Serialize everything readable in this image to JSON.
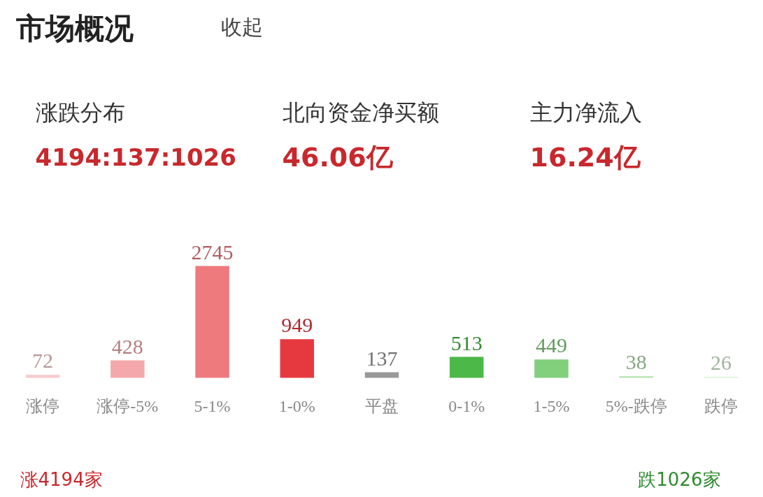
{
  "chart_data": {
    "type": "bar",
    "title": "市场概况",
    "categories": [
      "涨停",
      "涨停-5%",
      "5-1%",
      "1-0%",
      "平盘",
      "0-1%",
      "1-5%",
      "5%-跌停",
      "跌停"
    ],
    "values": [
      72,
      428,
      2745,
      949,
      137,
      513,
      449,
      38,
      26
    ],
    "colors": [
      "#f9c9cc",
      "#f4a8ab",
      "#ef7a7e",
      "#e6393f",
      "#999999",
      "#4cb847",
      "#82cf7c",
      "#b3e2ae",
      "#d9f0d6"
    ],
    "data_labels": true,
    "annotations": [
      "收起",
      "涨跌分布",
      "4194:137:1026",
      "北向资金净买额",
      "46.06亿",
      "主力净流入",
      "16.24亿",
      "涨4194家",
      "跌1026家"
    ]
  }
}
